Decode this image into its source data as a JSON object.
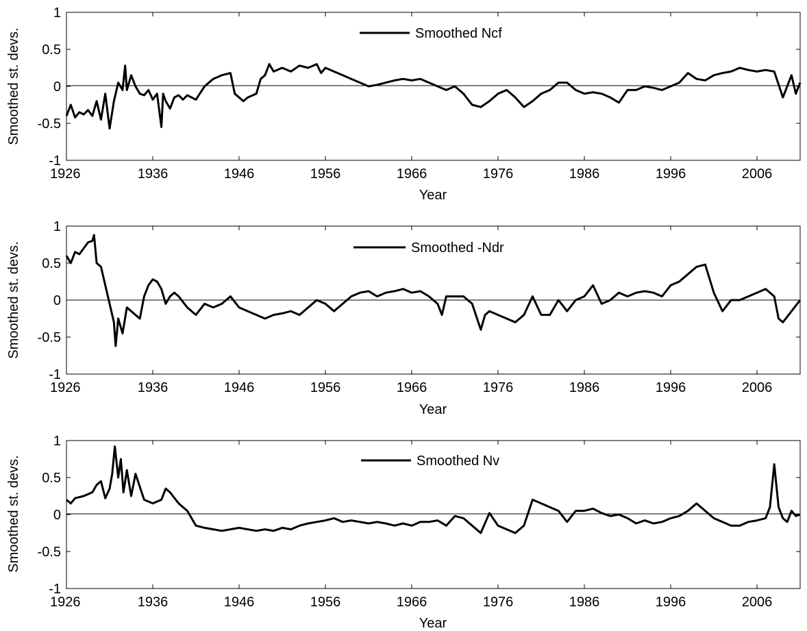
{
  "chart_data": [
    {
      "type": "line",
      "xlabel": "Year",
      "ylabel": "Smoothed st. devs.",
      "xlim": [
        1926,
        2011
      ],
      "ylim": [
        -1,
        1
      ],
      "xticks": [
        1926,
        1936,
        1946,
        1956,
        1966,
        1976,
        1986,
        1996,
        2006
      ],
      "yticks": [
        1,
        0.5,
        0,
        -0.5,
        -1
      ],
      "ytick_labels": [
        "1",
        "0.5",
        "0",
        "-0.5",
        "-1"
      ],
      "zero_line": true,
      "grid": false,
      "legend_placement": "top-center",
      "series": [
        {
          "name": "Smoothed Ncf",
          "color": "#000000",
          "x": [
            1926.0,
            1926.5,
            1927.0,
            1927.5,
            1928.0,
            1928.5,
            1929.0,
            1929.5,
            1930.0,
            1930.5,
            1931.0,
            1931.5,
            1932.0,
            1932.5,
            1932.8,
            1933.0,
            1933.5,
            1934.0,
            1934.5,
            1935.0,
            1935.5,
            1936.0,
            1936.5,
            1937.0,
            1937.2,
            1937.5,
            1938.0,
            1938.5,
            1939.0,
            1939.5,
            1940.0,
            1941.0,
            1942.0,
            1943.0,
            1944.0,
            1945.0,
            1945.5,
            1946.0,
            1946.5,
            1947.0,
            1948.0,
            1948.5,
            1949.0,
            1949.5,
            1950.0,
            1951.0,
            1952.0,
            1953.0,
            1954.0,
            1955.0,
            1955.5,
            1956.0,
            1957.0,
            1958.0,
            1959.0,
            1960.0,
            1961.0,
            1962.0,
            1963.0,
            1964.0,
            1965.0,
            1966.0,
            1967.0,
            1968.0,
            1969.0,
            1970.0,
            1971.0,
            1972.0,
            1973.0,
            1974.0,
            1975.0,
            1976.0,
            1977.0,
            1978.0,
            1979.0,
            1980.0,
            1981.0,
            1982.0,
            1983.0,
            1984.0,
            1985.0,
            1986.0,
            1987.0,
            1988.0,
            1989.0,
            1990.0,
            1991.0,
            1992.0,
            1993.0,
            1994.0,
            1995.0,
            1996.0,
            1997.0,
            1998.0,
            1999.0,
            2000.0,
            2001.0,
            2002.0,
            2003.0,
            2004.0,
            2005.0,
            2006.0,
            2007.0,
            2008.0,
            2009.0,
            2009.5,
            2010.0,
            2010.5,
            2011.0
          ],
          "y": [
            -0.4,
            -0.25,
            -0.42,
            -0.35,
            -0.38,
            -0.32,
            -0.4,
            -0.2,
            -0.45,
            -0.1,
            -0.57,
            -0.2,
            0.05,
            -0.05,
            0.28,
            -0.05,
            0.15,
            0.0,
            -0.1,
            -0.12,
            -0.05,
            -0.18,
            -0.1,
            -0.55,
            -0.1,
            -0.2,
            -0.3,
            -0.15,
            -0.12,
            -0.18,
            -0.12,
            -0.18,
            0.0,
            0.1,
            0.15,
            0.18,
            -0.1,
            -0.15,
            -0.2,
            -0.15,
            -0.1,
            0.1,
            0.15,
            0.3,
            0.2,
            0.25,
            0.2,
            0.28,
            0.25,
            0.3,
            0.18,
            0.25,
            0.2,
            0.15,
            0.1,
            0.05,
            0.0,
            0.02,
            0.05,
            0.08,
            0.1,
            0.08,
            0.1,
            0.05,
            0.0,
            -0.05,
            0.0,
            -0.1,
            -0.25,
            -0.28,
            -0.2,
            -0.1,
            -0.05,
            -0.15,
            -0.28,
            -0.2,
            -0.1,
            -0.05,
            0.05,
            0.05,
            -0.05,
            -0.1,
            -0.08,
            -0.1,
            -0.15,
            -0.22,
            -0.05,
            -0.05,
            0.0,
            -0.02,
            -0.05,
            0.0,
            0.05,
            0.18,
            0.1,
            0.08,
            0.15,
            0.18,
            0.2,
            0.25,
            0.22,
            0.2,
            0.22,
            0.2,
            -0.15,
            0.0,
            0.15,
            -0.1,
            0.05
          ]
        }
      ]
    },
    {
      "type": "line",
      "xlabel": "Year",
      "ylabel": "Smoothed st. devs.",
      "xlim": [
        1926,
        2011
      ],
      "ylim": [
        -1,
        1
      ],
      "xticks": [
        1926,
        1936,
        1946,
        1956,
        1966,
        1976,
        1986,
        1996,
        2006
      ],
      "yticks": [
        1,
        0.5,
        0,
        -0.5,
        -1
      ],
      "ytick_labels": [
        "1",
        "0.5",
        "0",
        "-0.5",
        "-1"
      ],
      "zero_line": true,
      "grid": false,
      "legend_placement": "top-center",
      "series": [
        {
          "name": "Smoothed -Ndr",
          "color": "#000000",
          "x": [
            1926.0,
            1926.5,
            1927.0,
            1927.5,
            1928.0,
            1928.5,
            1929.0,
            1929.2,
            1929.5,
            1930.0,
            1930.5,
            1931.0,
            1931.5,
            1931.7,
            1932.0,
            1932.5,
            1933.0,
            1933.5,
            1934.0,
            1934.5,
            1935.0,
            1935.5,
            1936.0,
            1936.5,
            1937.0,
            1937.5,
            1938.0,
            1938.5,
            1939.0,
            1940.0,
            1941.0,
            1942.0,
            1943.0,
            1944.0,
            1945.0,
            1946.0,
            1947.0,
            1948.0,
            1949.0,
            1950.0,
            1951.0,
            1952.0,
            1953.0,
            1954.0,
            1955.0,
            1956.0,
            1957.0,
            1958.0,
            1959.0,
            1960.0,
            1961.0,
            1962.0,
            1963.0,
            1964.0,
            1965.0,
            1966.0,
            1967.0,
            1968.0,
            1969.0,
            1969.5,
            1970.0,
            1971.0,
            1972.0,
            1973.0,
            1974.0,
            1974.5,
            1975.0,
            1976.0,
            1977.0,
            1978.0,
            1979.0,
            1980.0,
            1981.0,
            1982.0,
            1983.0,
            1984.0,
            1985.0,
            1986.0,
            1987.0,
            1988.0,
            1989.0,
            1990.0,
            1991.0,
            1992.0,
            1993.0,
            1994.0,
            1995.0,
            1996.0,
            1997.0,
            1998.0,
            1999.0,
            2000.0,
            2001.0,
            2002.0,
            2003.0,
            2004.0,
            2005.0,
            2006.0,
            2007.0,
            2008.0,
            2008.5,
            2009.0,
            2010.0,
            2011.0
          ],
          "y": [
            0.6,
            0.5,
            0.65,
            0.62,
            0.7,
            0.78,
            0.8,
            0.88,
            0.5,
            0.45,
            0.2,
            -0.05,
            -0.3,
            -0.62,
            -0.25,
            -0.45,
            -0.1,
            -0.15,
            -0.2,
            -0.25,
            0.05,
            0.2,
            0.28,
            0.25,
            0.15,
            -0.05,
            0.05,
            0.1,
            0.05,
            -0.1,
            -0.2,
            -0.05,
            -0.1,
            -0.05,
            0.05,
            -0.1,
            -0.15,
            -0.2,
            -0.25,
            -0.2,
            -0.18,
            -0.15,
            -0.2,
            -0.1,
            0.0,
            -0.05,
            -0.15,
            -0.05,
            0.05,
            0.1,
            0.12,
            0.05,
            0.1,
            0.12,
            0.15,
            0.1,
            0.12,
            0.05,
            -0.05,
            -0.2,
            0.05,
            0.05,
            0.05,
            -0.05,
            -0.4,
            -0.2,
            -0.15,
            -0.2,
            -0.25,
            -0.3,
            -0.2,
            0.05,
            -0.2,
            -0.2,
            0.0,
            -0.15,
            0.0,
            0.05,
            0.2,
            -0.05,
            0.0,
            0.1,
            0.05,
            0.1,
            0.12,
            0.1,
            0.05,
            0.2,
            0.25,
            0.35,
            0.45,
            0.48,
            0.1,
            -0.15,
            0.0,
            0.0,
            0.05,
            0.1,
            0.15,
            0.05,
            -0.25,
            -0.3,
            -0.15,
            0.0
          ]
        }
      ]
    },
    {
      "type": "line",
      "xlabel": "Year",
      "ylabel": "Smoothed st. devs.",
      "xlim": [
        1926,
        2011
      ],
      "ylim": [
        -1,
        1
      ],
      "xticks": [
        1926,
        1936,
        1946,
        1956,
        1966,
        1976,
        1986,
        1996,
        2006
      ],
      "yticks": [
        1,
        0.5,
        0,
        -0.5,
        -1
      ],
      "ytick_labels": [
        "1",
        "0.5",
        "0",
        "-0.5",
        "-1"
      ],
      "zero_line": true,
      "grid": false,
      "legend_placement": "top-center",
      "series": [
        {
          "name": "Smoothed Nv",
          "color": "#000000",
          "x": [
            1926.0,
            1926.5,
            1927.0,
            1928.0,
            1929.0,
            1929.5,
            1930.0,
            1930.5,
            1931.0,
            1931.3,
            1931.6,
            1932.0,
            1932.3,
            1932.6,
            1933.0,
            1933.5,
            1934.0,
            1935.0,
            1936.0,
            1937.0,
            1937.5,
            1938.0,
            1939.0,
            1940.0,
            1941.0,
            1942.0,
            1943.0,
            1944.0,
            1945.0,
            1946.0,
            1947.0,
            1948.0,
            1949.0,
            1950.0,
            1951.0,
            1952.0,
            1953.0,
            1954.0,
            1955.0,
            1956.0,
            1957.0,
            1958.0,
            1959.0,
            1960.0,
            1961.0,
            1962.0,
            1963.0,
            1964.0,
            1965.0,
            1966.0,
            1967.0,
            1968.0,
            1969.0,
            1970.0,
            1971.0,
            1972.0,
            1973.0,
            1974.0,
            1975.0,
            1976.0,
            1977.0,
            1978.0,
            1979.0,
            1980.0,
            1981.0,
            1982.0,
            1983.0,
            1984.0,
            1985.0,
            1986.0,
            1987.0,
            1988.0,
            1989.0,
            1990.0,
            1991.0,
            1992.0,
            1993.0,
            1994.0,
            1995.0,
            1996.0,
            1997.0,
            1998.0,
            1999.0,
            2000.0,
            2001.0,
            2002.0,
            2003.0,
            2004.0,
            2005.0,
            2006.0,
            2007.0,
            2007.5,
            2008.0,
            2008.5,
            2009.0,
            2009.5,
            2010.0,
            2010.5,
            2011.0
          ],
          "y": [
            0.2,
            0.15,
            0.22,
            0.25,
            0.3,
            0.4,
            0.45,
            0.22,
            0.35,
            0.55,
            0.92,
            0.5,
            0.75,
            0.3,
            0.6,
            0.25,
            0.55,
            0.2,
            0.15,
            0.2,
            0.35,
            0.3,
            0.15,
            0.05,
            -0.15,
            -0.18,
            -0.2,
            -0.22,
            -0.2,
            -0.18,
            -0.2,
            -0.22,
            -0.2,
            -0.22,
            -0.18,
            -0.2,
            -0.15,
            -0.12,
            -0.1,
            -0.08,
            -0.05,
            -0.1,
            -0.08,
            -0.1,
            -0.12,
            -0.1,
            -0.12,
            -0.15,
            -0.12,
            -0.15,
            -0.1,
            -0.1,
            -0.08,
            -0.15,
            -0.02,
            -0.05,
            -0.15,
            -0.25,
            0.02,
            -0.15,
            -0.2,
            -0.25,
            -0.15,
            0.2,
            0.15,
            0.1,
            0.05,
            -0.1,
            0.05,
            0.05,
            0.08,
            0.02,
            -0.02,
            0.0,
            -0.05,
            -0.12,
            -0.08,
            -0.12,
            -0.1,
            -0.05,
            -0.02,
            0.05,
            0.15,
            0.05,
            -0.05,
            -0.1,
            -0.15,
            -0.15,
            -0.1,
            -0.08,
            -0.05,
            0.1,
            0.68,
            0.1,
            -0.05,
            -0.1,
            0.05,
            -0.02,
            0.0
          ]
        }
      ]
    }
  ]
}
